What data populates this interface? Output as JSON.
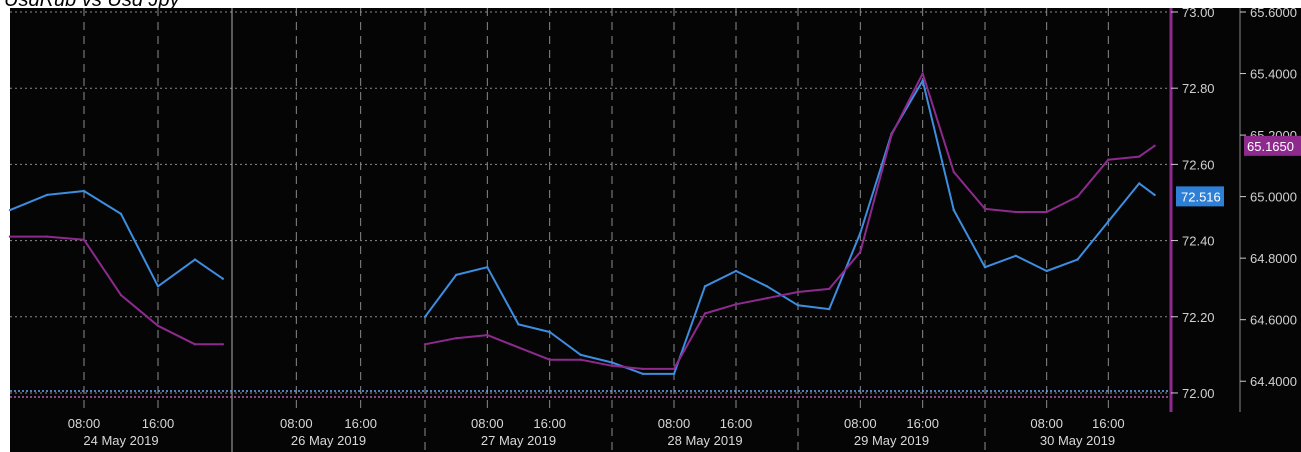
{
  "title": "UsdRub vs Usd Jpy",
  "colors": {
    "background": "#050505",
    "usdrub": "#3d8de0",
    "usdjpy": "#8e2a8e",
    "tag_usdrub": "#2e7fd6",
    "tag_usdjpy": "#8e2a8e",
    "grid": "#8a8a8a"
  },
  "chart_data": {
    "type": "line",
    "title": "UsdRub vs Usd Jpy",
    "x_hour_labels": [
      "08:00",
      "16:00",
      "08:00",
      "16:00",
      "08:00",
      "16:00",
      "08:00",
      "16:00",
      "08:00",
      "16:00",
      "08:00",
      "16:00"
    ],
    "x_date_labels": [
      "24 May 2019",
      "26 May 2019",
      "27 May 2019",
      "28 May 2019",
      "29 May 2019",
      "30 May 2019"
    ],
    "y_left_ticks": [
      "73.00",
      "72.80",
      "72.60",
      "72.40",
      "72.20",
      "72.00"
    ],
    "y_right_ticks": [
      "65.6000",
      "65.4000",
      "65.2000",
      "65.0000",
      "64.8000",
      "64.6000",
      "64.4000"
    ],
    "y_left_range": [
      71.95,
      73.0
    ],
    "y_right_range": [
      64.3,
      65.6
    ],
    "last_value_tags": {
      "usdrub": "72.516",
      "usdjpy": "65.1650"
    },
    "grid": true,
    "series": [
      {
        "key": "usdrub",
        "axis": "left",
        "x": [
          "24 May 00:00",
          "24 May 04:00",
          "24 May 08:00",
          "24 May 12:00",
          "24 May 16:00",
          "24 May 20:00",
          "24 May 23:00",
          "27 May 00:00",
          "27 May 04:00",
          "27 May 08:00",
          "27 May 12:00",
          "27 May 16:00",
          "27 May 20:00",
          "28 May 00:00",
          "28 May 04:00",
          "28 May 08:00",
          "28 May 12:00",
          "28 May 16:00",
          "28 May 20:00",
          "29 May 00:00",
          "29 May 04:00",
          "29 May 08:00",
          "29 May 12:00",
          "29 May 16:00",
          "29 May 20:00",
          "30 May 00:00",
          "30 May 04:00",
          "30 May 08:00",
          "30 May 12:00",
          "30 May 16:00",
          "30 May 20:00",
          "30 May 22:00"
        ],
        "y": [
          72.48,
          72.52,
          72.53,
          72.47,
          72.28,
          72.35,
          72.3,
          72.2,
          72.31,
          72.33,
          72.18,
          72.16,
          72.1,
          72.08,
          72.05,
          72.05,
          72.28,
          72.32,
          72.28,
          72.23,
          72.22,
          72.42,
          72.68,
          72.82,
          72.48,
          72.33,
          72.36,
          72.32,
          72.35,
          72.45,
          72.55,
          72.52
        ]
      },
      {
        "key": "usdjpy",
        "axis": "right",
        "x": [
          "24 May 00:00",
          "24 May 04:00",
          "24 May 08:00",
          "24 May 12:00",
          "24 May 16:00",
          "24 May 20:00",
          "24 May 23:00",
          "27 May 00:00",
          "27 May 04:00",
          "27 May 08:00",
          "27 May 12:00",
          "27 May 16:00",
          "27 May 20:00",
          "28 May 00:00",
          "28 May 04:00",
          "28 May 08:00",
          "28 May 12:00",
          "28 May 16:00",
          "28 May 20:00",
          "29 May 00:00",
          "29 May 04:00",
          "29 May 08:00",
          "29 May 12:00",
          "29 May 16:00",
          "29 May 20:00",
          "30 May 00:00",
          "30 May 04:00",
          "30 May 08:00",
          "30 May 12:00",
          "30 May 16:00",
          "30 May 20:00",
          "30 May 22:00"
        ],
        "y": [
          64.87,
          64.87,
          64.86,
          64.68,
          64.58,
          64.52,
          64.52,
          64.52,
          64.54,
          64.55,
          64.51,
          64.47,
          64.47,
          64.45,
          64.44,
          64.44,
          64.62,
          64.65,
          64.67,
          64.69,
          64.7,
          64.82,
          65.2,
          65.4,
          65.08,
          64.96,
          64.95,
          64.95,
          65.0,
          65.12,
          65.13,
          65.165
        ]
      }
    ]
  }
}
